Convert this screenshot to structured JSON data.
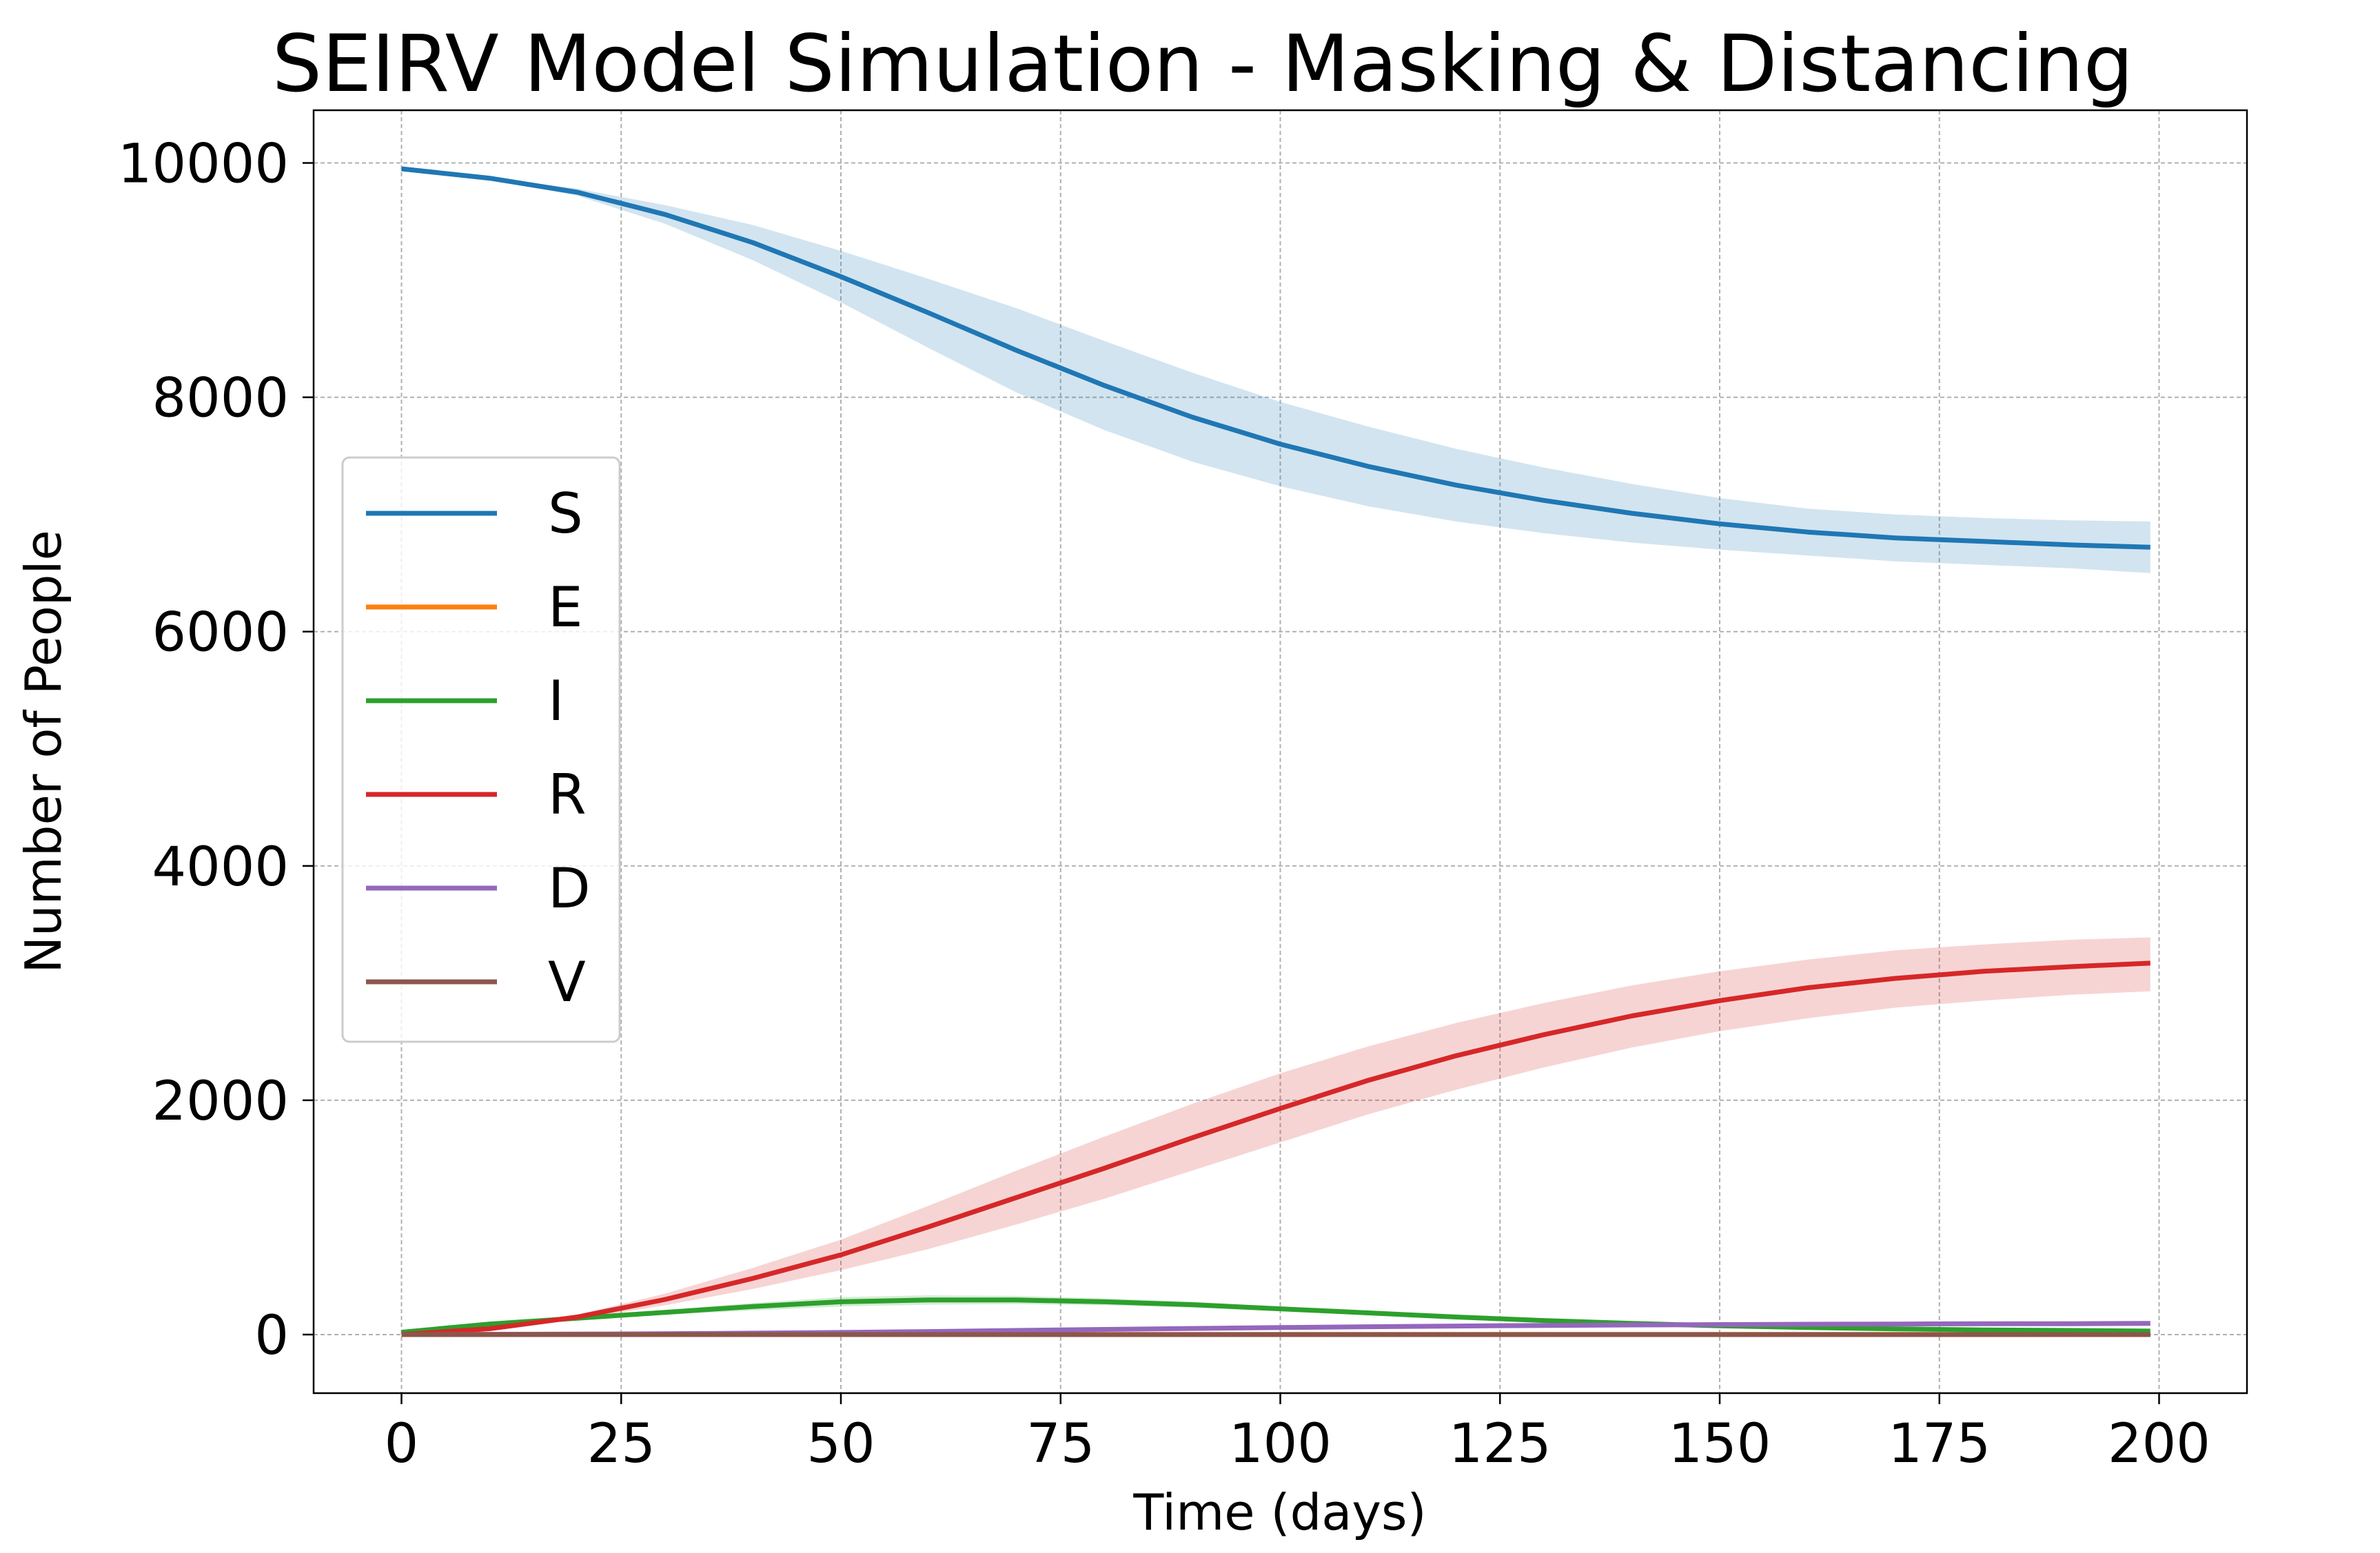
{
  "chart_data": {
    "type": "line",
    "title": "SEIRV Model Simulation - Masking & Distancing",
    "xlabel": "Time (days)",
    "ylabel": "Number of People",
    "xlim": [
      -10,
      210
    ],
    "ylim": [
      -500,
      10450
    ],
    "x_ticks": [
      0,
      25,
      50,
      75,
      100,
      125,
      150,
      175,
      200
    ],
    "y_ticks": [
      0,
      2000,
      4000,
      6000,
      8000,
      10000
    ],
    "grid": true,
    "legend_position": "center-left",
    "x": [
      0,
      10,
      20,
      30,
      40,
      50,
      60,
      70,
      80,
      90,
      100,
      110,
      120,
      130,
      140,
      150,
      160,
      170,
      180,
      190,
      199
    ],
    "series": [
      {
        "name": "S",
        "color": "#1f77b4",
        "values": [
          9950,
          9870,
          9750,
          9560,
          9320,
          9030,
          8720,
          8400,
          8100,
          7830,
          7600,
          7410,
          7250,
          7120,
          7010,
          6920,
          6850,
          6800,
          6770,
          6740,
          6720
        ],
        "band_lower": [
          9950,
          9860,
          9720,
          9480,
          9170,
          8810,
          8420,
          8040,
          7720,
          7450,
          7240,
          7070,
          6940,
          6840,
          6760,
          6700,
          6650,
          6600,
          6570,
          6540,
          6500
        ],
        "band_upper": [
          9950,
          9880,
          9780,
          9640,
          9470,
          9250,
          9010,
          8760,
          8480,
          8210,
          7960,
          7750,
          7560,
          7400,
          7260,
          7140,
          7050,
          7000,
          6970,
          6950,
          6940
        ]
      },
      {
        "name": "E",
        "color": "#ff7f0e",
        "values": [
          0,
          1,
          1,
          1,
          1,
          1,
          1,
          1,
          1,
          1,
          1,
          1,
          1,
          1,
          1,
          1,
          1,
          1,
          1,
          1,
          1
        ]
      },
      {
        "name": "I",
        "color": "#2ca02c",
        "values": [
          20,
          90,
          140,
          190,
          240,
          280,
          295,
          295,
          280,
          255,
          220,
          185,
          150,
          120,
          95,
          75,
          60,
          48,
          40,
          35,
          30
        ],
        "band_lower": [
          20,
          85,
          130,
          170,
          205,
          240,
          255,
          260,
          250,
          230,
          200,
          170,
          140,
          110,
          88,
          70,
          56,
          45,
          37,
          32,
          27
        ],
        "band_upper": [
          20,
          95,
          150,
          210,
          270,
          320,
          335,
          330,
          310,
          280,
          240,
          200,
          160,
          130,
          102,
          80,
          64,
          51,
          43,
          38,
          33
        ]
      },
      {
        "name": "R",
        "color": "#d62728",
        "values": [
          0,
          50,
          150,
          300,
          480,
          680,
          920,
          1170,
          1420,
          1680,
          1930,
          2170,
          2380,
          2560,
          2720,
          2850,
          2960,
          3040,
          3100,
          3140,
          3170
        ],
        "band_lower": [
          0,
          45,
          130,
          250,
          390,
          550,
          730,
          940,
          1160,
          1400,
          1640,
          1880,
          2090,
          2280,
          2450,
          2590,
          2700,
          2790,
          2850,
          2900,
          2930
        ],
        "band_upper": [
          0,
          55,
          170,
          350,
          570,
          810,
          1100,
          1400,
          1690,
          1970,
          2230,
          2460,
          2660,
          2830,
          2980,
          3100,
          3200,
          3280,
          3330,
          3370,
          3390
        ]
      },
      {
        "name": "D",
        "color": "#9467bd",
        "values": [
          0,
          2,
          4,
          7,
          12,
          18,
          26,
          35,
          44,
          52,
          60,
          67,
          73,
          78,
          82,
          85,
          88,
          90,
          92,
          93,
          95
        ]
      },
      {
        "name": "V",
        "color": "#8c564b",
        "values": [
          0,
          0,
          0,
          0,
          0,
          0,
          0,
          0,
          0,
          0,
          0,
          0,
          0,
          0,
          0,
          0,
          0,
          0,
          0,
          0,
          0
        ]
      }
    ]
  }
}
